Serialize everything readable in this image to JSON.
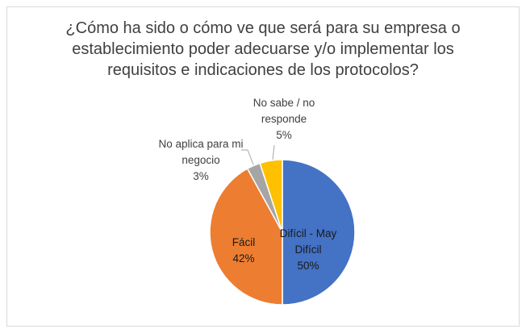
{
  "chart_data": {
    "type": "pie",
    "title": "¿Cómo ha sido o cómo ve que será para su empresa o establecimiento poder adecuarse y/o implementar los requisitos e indicaciones de los protocolos?",
    "categories": [
      "Difícil - May Difícil",
      "Fácil",
      "No aplica para mi negocio",
      "No sabe / no responde"
    ],
    "values": [
      50,
      42,
      3,
      5
    ],
    "value_labels": [
      "50%",
      "42%",
      "3%",
      "5%"
    ],
    "colors": [
      "#4472c4",
      "#ed7d31",
      "#a5a5a5",
      "#ffc000"
    ]
  }
}
